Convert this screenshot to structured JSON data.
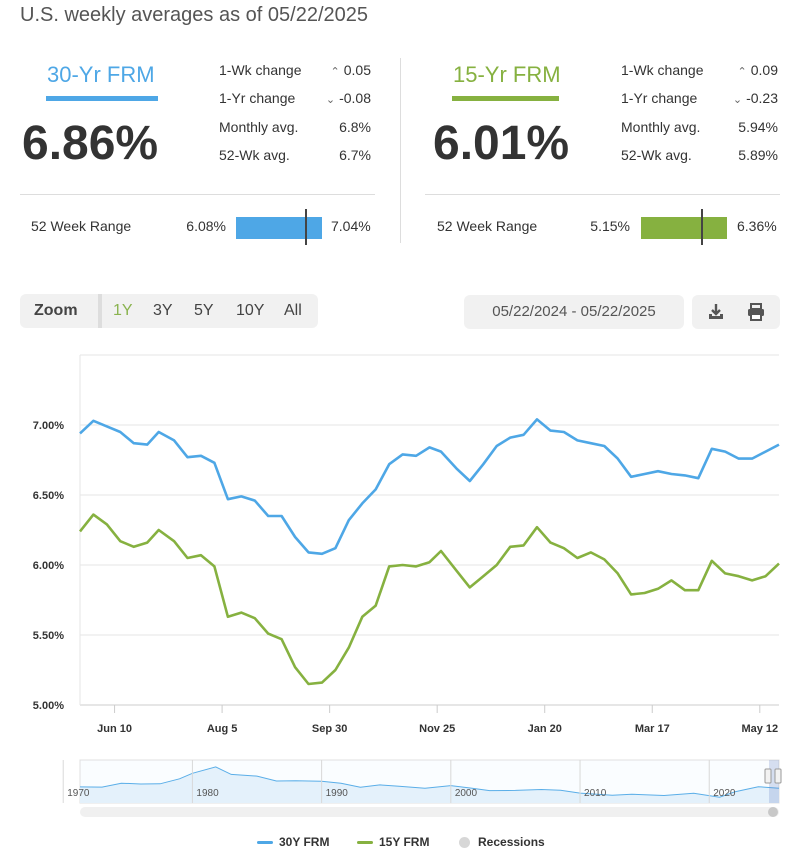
{
  "header": {
    "subtitle": "U.S. weekly averages as of 05/22/2025"
  },
  "cards": [
    {
      "title": "30-Yr FRM",
      "color": "#4ea7e6",
      "rate": "6.86%",
      "stats": [
        {
          "label": "1-Wk change",
          "value": "0.05",
          "direction": "up"
        },
        {
          "label": "1-Yr change",
          "value": "-0.08",
          "direction": "down"
        },
        {
          "label": "Monthly avg.",
          "value": "6.8%"
        },
        {
          "label": "52-Wk avg.",
          "value": "6.7%"
        }
      ],
      "range_label": "52 Week Range",
      "range_low": "6.08%",
      "range_high": "7.04%",
      "range_low_value": 6.08,
      "range_high_value": 7.04,
      "current_value": 6.86
    },
    {
      "title": "15-Yr FRM",
      "color": "#86b140",
      "rate": "6.01%",
      "stats": [
        {
          "label": "1-Wk change",
          "value": "0.09",
          "direction": "up"
        },
        {
          "label": "1-Yr change",
          "value": "-0.23",
          "direction": "down"
        },
        {
          "label": "Monthly avg.",
          "value": "5.94%"
        },
        {
          "label": "52-Wk avg.",
          "value": "5.89%"
        }
      ],
      "range_label": "52 Week Range",
      "range_low": "5.15%",
      "range_high": "6.36%",
      "range_low_value": 5.15,
      "range_high_value": 6.36,
      "current_value": 6.01
    }
  ],
  "zoom": {
    "label": "Zoom",
    "buttons": [
      "1Y",
      "3Y",
      "5Y",
      "10Y",
      "All"
    ],
    "active": "1Y"
  },
  "date_range": "05/22/2024 - 05/22/2025",
  "icons": {
    "download": "download-icon",
    "print": "print-icon"
  },
  "chart_data": {
    "type": "line",
    "ylim": [
      5.0,
      7.5
    ],
    "y_ticks": [
      5.0,
      5.5,
      6.0,
      6.5,
      7.0
    ],
    "y_tick_labels": [
      "5.00%",
      "5.50%",
      "6.00%",
      "6.50%",
      "7.00%"
    ],
    "x_range": [
      "2024-05-23",
      "2025-05-22"
    ],
    "x_ticks": [
      {
        "date": "2024-06-10",
        "label": "Jun 10"
      },
      {
        "date": "2024-08-05",
        "label": "Aug 5"
      },
      {
        "date": "2024-09-30",
        "label": "Sep 30"
      },
      {
        "date": "2024-11-25",
        "label": "Nov 25"
      },
      {
        "date": "2025-01-20",
        "label": "Jan 20"
      },
      {
        "date": "2025-03-17",
        "label": "Mar 17"
      },
      {
        "date": "2025-05-12",
        "label": "May 12"
      }
    ],
    "x": [
      "2024-05-23",
      "2024-05-30",
      "2024-06-06",
      "2024-06-13",
      "2024-06-20",
      "2024-06-27",
      "2024-07-03",
      "2024-07-11",
      "2024-07-18",
      "2024-07-25",
      "2024-08-01",
      "2024-08-08",
      "2024-08-15",
      "2024-08-22",
      "2024-08-29",
      "2024-09-05",
      "2024-09-12",
      "2024-09-19",
      "2024-09-26",
      "2024-10-03",
      "2024-10-10",
      "2024-10-17",
      "2024-10-24",
      "2024-10-31",
      "2024-11-07",
      "2024-11-14",
      "2024-11-21",
      "2024-11-27",
      "2024-12-05",
      "2024-12-12",
      "2024-12-19",
      "2024-12-26",
      "2025-01-02",
      "2025-01-09",
      "2025-01-16",
      "2025-01-23",
      "2025-01-30",
      "2025-02-06",
      "2025-02-13",
      "2025-02-20",
      "2025-02-27",
      "2025-03-06",
      "2025-03-13",
      "2025-03-20",
      "2025-03-27",
      "2025-04-03",
      "2025-04-10",
      "2025-04-17",
      "2025-04-24",
      "2025-05-01",
      "2025-05-08",
      "2025-05-15",
      "2025-05-22"
    ],
    "series": [
      {
        "name": "30Y FRM",
        "color": "#4ea7e6",
        "values": [
          6.94,
          7.03,
          6.99,
          6.95,
          6.87,
          6.86,
          6.95,
          6.89,
          6.77,
          6.78,
          6.73,
          6.47,
          6.49,
          6.46,
          6.35,
          6.35,
          6.2,
          6.09,
          6.08,
          6.12,
          6.32,
          6.44,
          6.54,
          6.72,
          6.79,
          6.78,
          6.84,
          6.81,
          6.69,
          6.6,
          6.72,
          6.85,
          6.91,
          6.93,
          7.04,
          6.96,
          6.95,
          6.89,
          6.87,
          6.85,
          6.76,
          6.63,
          6.65,
          6.67,
          6.65,
          6.64,
          6.62,
          6.83,
          6.81,
          6.76,
          6.76,
          6.81,
          6.86
        ]
      },
      {
        "name": "15Y FRM",
        "color": "#86b140",
        "values": [
          6.24,
          6.36,
          6.29,
          6.17,
          6.13,
          6.16,
          6.25,
          6.17,
          6.05,
          6.07,
          5.99,
          5.63,
          5.66,
          5.62,
          5.51,
          5.47,
          5.27,
          5.15,
          5.16,
          5.25,
          5.41,
          5.63,
          5.71,
          5.99,
          6.0,
          5.99,
          6.02,
          6.1,
          5.96,
          5.84,
          5.92,
          6.0,
          6.13,
          6.14,
          6.27,
          6.16,
          6.12,
          6.05,
          6.09,
          6.04,
          5.94,
          5.79,
          5.8,
          5.83,
          5.89,
          5.82,
          5.82,
          6.03,
          5.94,
          5.92,
          5.89,
          5.92,
          6.01
        ]
      }
    ]
  },
  "navigator": {
    "x_labels": [
      "1970",
      "1980",
      "1990",
      "2000",
      "2010",
      "2020"
    ],
    "x_start": 1971.3,
    "x_end": 2025.4,
    "series": [
      {
        "years": [
          1971.3,
          1973,
          1974.5,
          1976,
          1977.5,
          1979,
          1980,
          1981.8,
          1983,
          1985,
          1986.5,
          1988,
          1990,
          1991.5,
          1993,
          1994.5,
          1996,
          1998,
          2000,
          2001.5,
          2003,
          2005,
          2007,
          2008.5,
          2010,
          2012.5,
          2014,
          2016.5,
          2018.8,
          2020.8,
          2022,
          2023.8,
          2025.4
        ],
        "values": [
          7.5,
          7.4,
          9.2,
          8.8,
          8.9,
          11.2,
          13.7,
          16.6,
          13.2,
          12.4,
          10.2,
          10.3,
          10.1,
          9.2,
          7.3,
          8.4,
          7.8,
          6.9,
          8.1,
          7.0,
          5.8,
          5.9,
          6.3,
          6.0,
          4.7,
          3.7,
          4.2,
          3.6,
          4.6,
          2.8,
          5.3,
          7.6,
          6.9
        ]
      }
    ]
  },
  "legend": [
    {
      "label": "30Y FRM",
      "color": "#4ea7e6",
      "kind": "line"
    },
    {
      "label": "15Y FRM",
      "color": "#86b140",
      "kind": "line"
    },
    {
      "label": "Recessions",
      "color": "#d7d7d7",
      "kind": "dot"
    }
  ]
}
